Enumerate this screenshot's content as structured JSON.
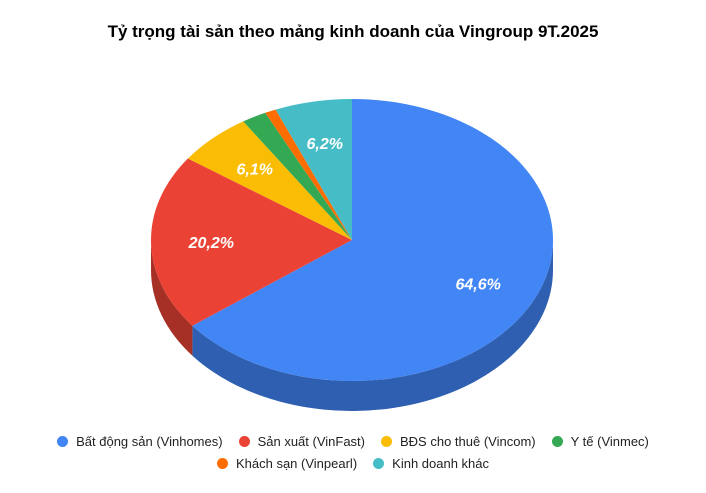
{
  "chart_data": {
    "type": "pie",
    "style": "3d",
    "title": "Tỷ trọng tài sản theo mảng kinh doanh của Vingroup 9T.2025",
    "legend_position": "bottom",
    "slices": [
      {
        "name": "Bất động sản (Vinhomes)",
        "value": 64.6,
        "label": "64,6%",
        "color": "#4285f4",
        "side": "#2f5fb0"
      },
      {
        "name": "Sản xuất (VinFast)",
        "value": 20.2,
        "label": "20,2%",
        "color": "#ea4335",
        "side": "#a62f26"
      },
      {
        "name": "BĐS cho thuê (Vincom)",
        "value": 6.1,
        "label": "6,1%",
        "color": "#fbbc04",
        "side": "#b28503"
      },
      {
        "name": "Y tế (Vinmec)",
        "value": 2.0,
        "label": "",
        "color": "#34a853",
        "side": "#25773b"
      },
      {
        "name": "Khách sạn (Vinpearl)",
        "value": 0.9,
        "label": "",
        "color": "#ff6d01",
        "side": "#b54d01"
      },
      {
        "name": "Kinh doanh khác",
        "value": 6.2,
        "label": "6,2%",
        "color": "#46bdc6",
        "side": "#32868c"
      }
    ]
  }
}
